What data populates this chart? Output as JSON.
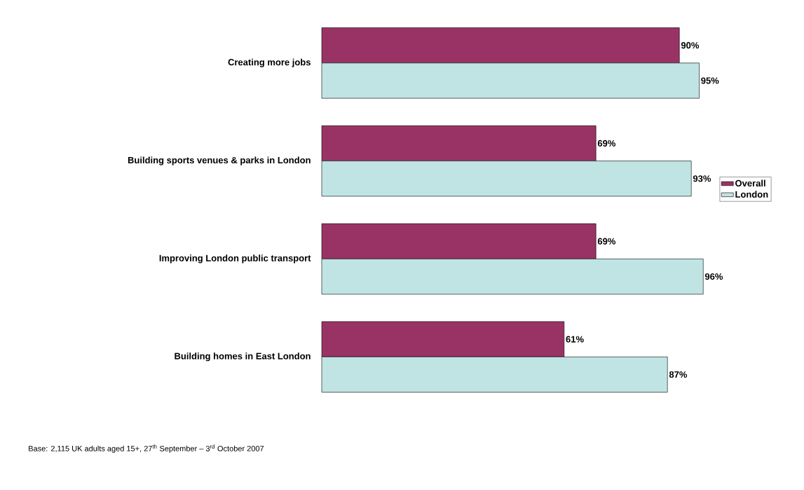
{
  "chart_data": {
    "type": "bar",
    "orientation": "horizontal",
    "legend": "right",
    "categories": [
      "Creating more jobs",
      "Building sports venues & parks in London",
      "Improving London public transport",
      "Building homes in East London"
    ],
    "series": [
      {
        "name": "Overall",
        "color": "#993366",
        "values": [
          90,
          69,
          69,
          61
        ],
        "value_labels": [
          "90%",
          "69%",
          "69%",
          "61%"
        ]
      },
      {
        "name": "London",
        "color": "#c0e4e4",
        "values": [
          95,
          93,
          96,
          87
        ],
        "value_labels": [
          "95%",
          "93%",
          "96%",
          "87%"
        ]
      }
    ],
    "annotations": [
      "Base: 2,115 UK adults aged 15+, 27$^{th}$ September – 3$^{rd}$ October 2007"
    ]
  }
}
